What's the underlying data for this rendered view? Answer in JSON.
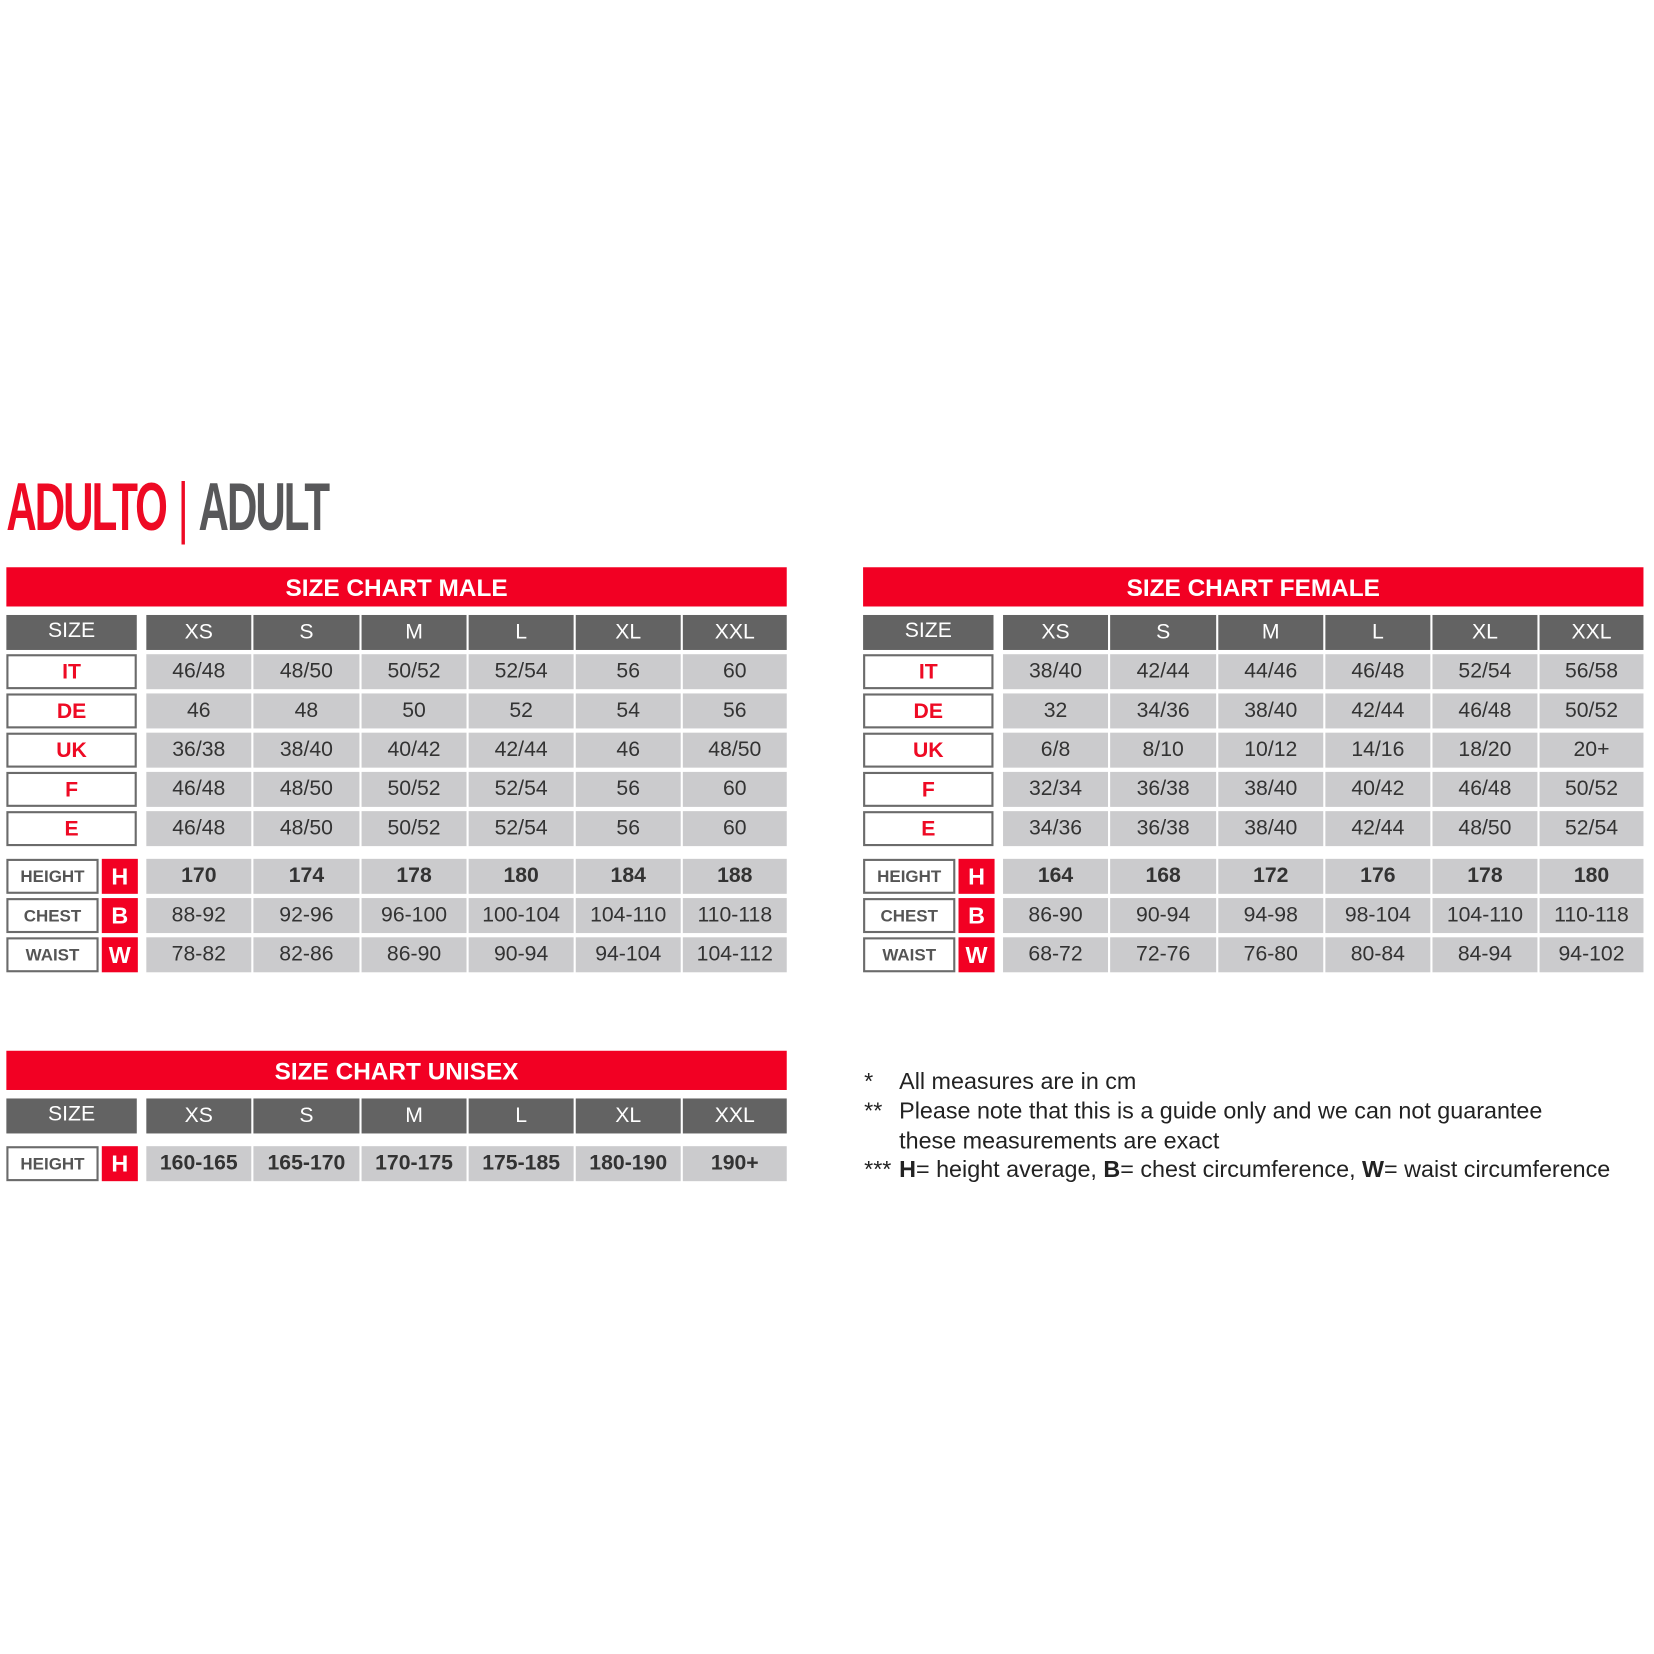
{
  "title": {
    "left": "ADULTO",
    "separator": "|",
    "right": "ADULT"
  },
  "colors": {
    "brand_red": "#f20023",
    "header_gray": "#636363",
    "cell_gray": "#cbcbcd"
  },
  "sizes": [
    "XS",
    "S",
    "M",
    "L",
    "XL",
    "XXL"
  ],
  "size_label": "SIZE",
  "male": {
    "title": "SIZE CHART MALE",
    "conversions": [
      {
        "label": "IT",
        "values": [
          "46/48",
          "48/50",
          "50/52",
          "52/54",
          "56",
          "60"
        ]
      },
      {
        "label": "DE",
        "values": [
          "46",
          "48",
          "50",
          "52",
          "54",
          "56"
        ]
      },
      {
        "label": "UK",
        "values": [
          "36/38",
          "38/40",
          "40/42",
          "42/44",
          "46",
          "48/50"
        ]
      },
      {
        "label": "F",
        "values": [
          "46/48",
          "48/50",
          "50/52",
          "52/54",
          "56",
          "60"
        ]
      },
      {
        "label": "E",
        "values": [
          "46/48",
          "48/50",
          "50/52",
          "52/54",
          "56",
          "60"
        ]
      }
    ],
    "measures": [
      {
        "label": "HEIGHT",
        "code": "H",
        "values": [
          "170",
          "174",
          "178",
          "180",
          "184",
          "188"
        ]
      },
      {
        "label": "CHEST",
        "code": "B",
        "values": [
          "88-92",
          "92-96",
          "96-100",
          "100-104",
          "104-110",
          "110-118"
        ]
      },
      {
        "label": "WAIST",
        "code": "W",
        "values": [
          "78-82",
          "82-86",
          "86-90",
          "90-94",
          "94-104",
          "104-112"
        ]
      }
    ]
  },
  "female": {
    "title": "SIZE CHART FEMALE",
    "conversions": [
      {
        "label": "IT",
        "values": [
          "38/40",
          "42/44",
          "44/46",
          "46/48",
          "52/54",
          "56/58"
        ]
      },
      {
        "label": "DE",
        "values": [
          "32",
          "34/36",
          "38/40",
          "42/44",
          "46/48",
          "50/52"
        ]
      },
      {
        "label": "UK",
        "values": [
          "6/8",
          "8/10",
          "10/12",
          "14/16",
          "18/20",
          "20+"
        ]
      },
      {
        "label": "F",
        "values": [
          "32/34",
          "36/38",
          "38/40",
          "40/42",
          "46/48",
          "50/52"
        ]
      },
      {
        "label": "E",
        "values": [
          "34/36",
          "36/38",
          "38/40",
          "42/44",
          "48/50",
          "52/54"
        ]
      }
    ],
    "measures": [
      {
        "label": "HEIGHT",
        "code": "H",
        "values": [
          "164",
          "168",
          "172",
          "176",
          "178",
          "180"
        ]
      },
      {
        "label": "CHEST",
        "code": "B",
        "values": [
          "86-90",
          "90-94",
          "94-98",
          "98-104",
          "104-110",
          "110-118"
        ]
      },
      {
        "label": "WAIST",
        "code": "W",
        "values": [
          "68-72",
          "72-76",
          "76-80",
          "80-84",
          "84-94",
          "94-102"
        ]
      }
    ]
  },
  "unisex": {
    "title": "SIZE CHART UNISEX",
    "conversions": [],
    "measures": [
      {
        "label": "HEIGHT",
        "code": "H",
        "values": [
          "160-165",
          "165-170",
          "170-175",
          "175-185",
          "180-190",
          "190+"
        ]
      }
    ]
  },
  "notes": [
    {
      "marker": "*",
      "text": "All measures are in cm"
    },
    {
      "marker": "**",
      "text": "Please note that this is a guide only and we can not guarantee"
    },
    {
      "marker": "",
      "text": "these measurements are exact"
    },
    {
      "marker": "***",
      "h": "H",
      "h_text": "= height average, ",
      "b": "B",
      "b_text": "= chest circumference, ",
      "w": "W",
      "w_text": "= waist circumference"
    }
  ]
}
